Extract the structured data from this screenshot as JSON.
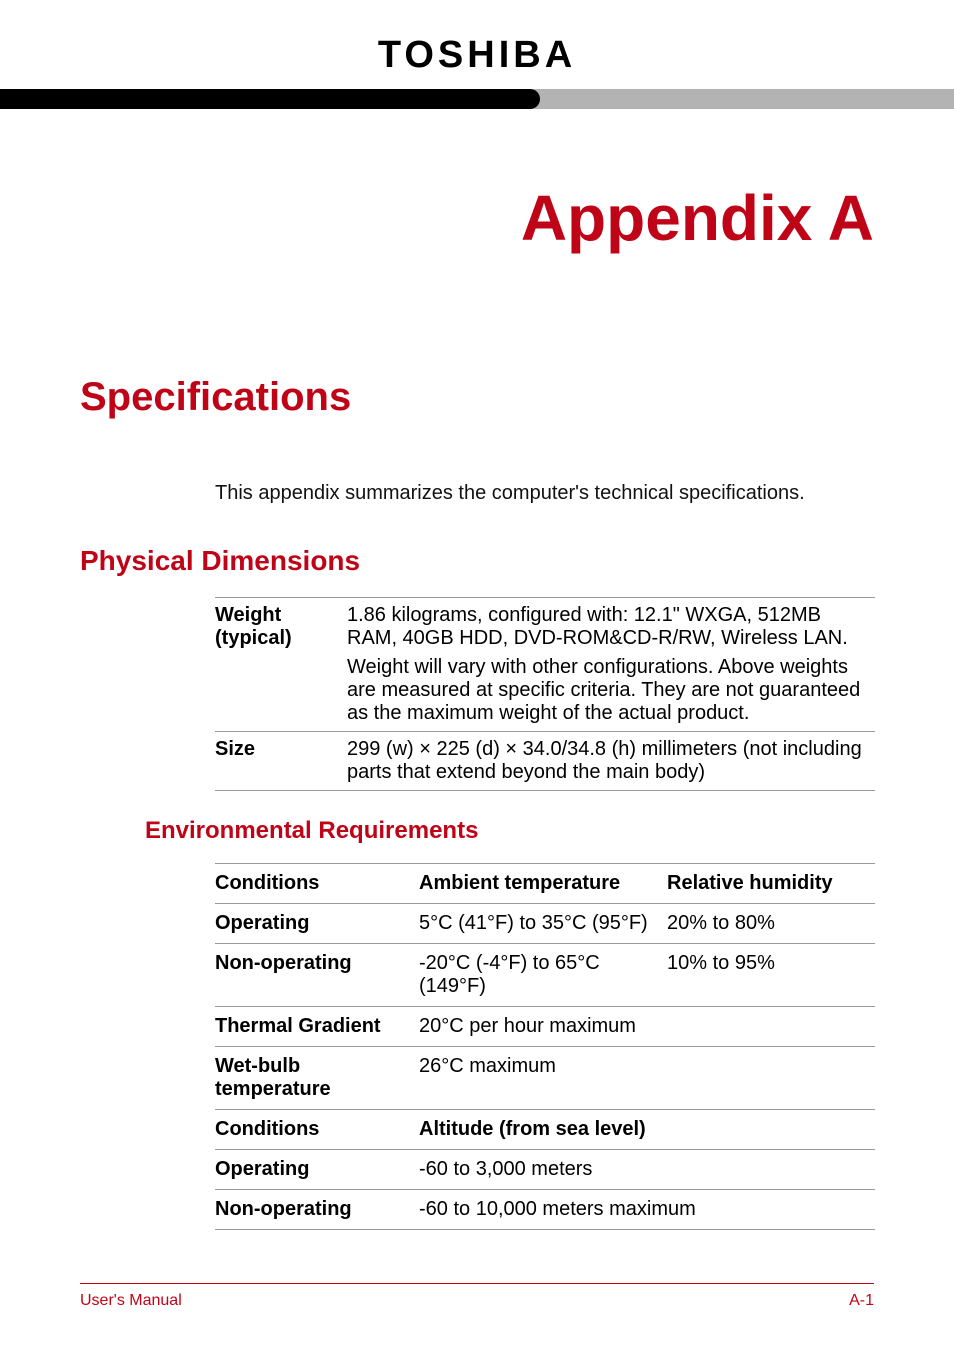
{
  "colors": {
    "accent": "#c00418",
    "bar_gray": "#b3b3b3",
    "bar_black": "#000000",
    "text": "#000000",
    "rule": "#999999",
    "background": "#ffffff"
  },
  "typography": {
    "brand_fontsize": 38,
    "appendix_fontsize": 64,
    "specs_fontsize": 40,
    "section_fontsize": 28,
    "subsection_fontsize": 24,
    "body_fontsize": 20,
    "footer_fontsize": 16,
    "font_family": "Arial, Helvetica, sans-serif"
  },
  "brand": "TOSHIBA",
  "appendix_title": "Appendix A",
  "specs_title": "Specifications",
  "intro": "This appendix summarizes the computer's technical specifications.",
  "physical_dimensions": {
    "heading": "Physical Dimensions",
    "rows": [
      {
        "label": "Weight (typical)",
        "value": "1.86 kilograms, configured with: 12.1\" WXGA, 512MB RAM, 40GB HDD, DVD-ROM&CD-R/RW, Wireless LAN.",
        "note": "Weight will vary with other configurations. Above weights are measured at specific criteria. They are not guaranteed as the maximum weight of the actual product."
      },
      {
        "label": "Size",
        "value": "299 (w) × 225 (d) × 34.0/34.8 (h) millimeters (not including parts that extend beyond the main body)"
      }
    ]
  },
  "environmental": {
    "heading": "Environmental Requirements",
    "header1": {
      "c1": "Conditions",
      "c2": "Ambient temperature",
      "c3": "Relative humidity"
    },
    "rows1": [
      {
        "c1": "Operating",
        "c2": "5°C (41°F) to 35°C (95°F)",
        "c3": "20% to 80%"
      },
      {
        "c1": "Non-operating",
        "c2": "-20°C (-4°F) to 65°C (149°F)",
        "c3": "10% to 95%"
      },
      {
        "c1": "Thermal Gradient",
        "c2": "20°C per hour maximum",
        "c3": ""
      },
      {
        "c1": "Wet-bulb temperature",
        "c2": "26°C maximum",
        "c3": ""
      }
    ],
    "header2": {
      "c1": "Conditions",
      "c2": "Altitude (from sea level)"
    },
    "rows2": [
      {
        "c1": "Operating",
        "c2": "-60 to 3,000 meters"
      },
      {
        "c1": "Non-operating",
        "c2": "-60 to 10,000 meters maximum"
      }
    ]
  },
  "footer": {
    "left": "User's Manual",
    "right": "A-1"
  }
}
